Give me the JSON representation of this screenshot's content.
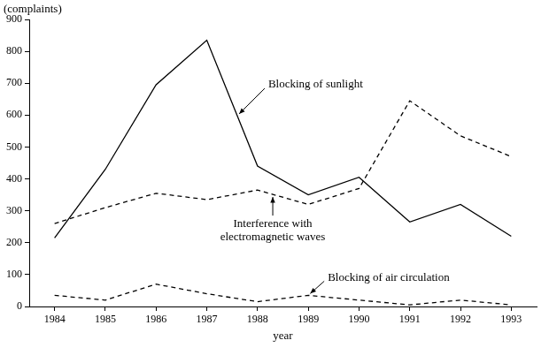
{
  "chart_data": {
    "type": "line",
    "y_label": "(complaints)",
    "x_label": "year",
    "categories": [
      "1984",
      "1985",
      "1986",
      "1987",
      "1988",
      "1989",
      "1990",
      "1991",
      "1992",
      "1993"
    ],
    "ylim": [
      0,
      900
    ],
    "yticks": [
      0,
      100,
      200,
      300,
      400,
      500,
      600,
      700,
      800,
      900
    ],
    "grid": false,
    "series": [
      {
        "name": "Blocking of sunlight",
        "color": "#000000",
        "line_style": "solid",
        "values": [
          215,
          430,
          695,
          835,
          440,
          350,
          405,
          265,
          320,
          220
        ]
      },
      {
        "name": "Interference with electromagnetic waves",
        "color": "#000000",
        "line_style": "dashed",
        "values": [
          260,
          310,
          355,
          335,
          365,
          320,
          370,
          645,
          535,
          470
        ]
      },
      {
        "name": "Blocking of air circulation",
        "color": "#000000",
        "line_style": "dashed",
        "values": [
          35,
          20,
          70,
          40,
          15,
          35,
          20,
          5,
          20,
          5
        ]
      }
    ]
  }
}
